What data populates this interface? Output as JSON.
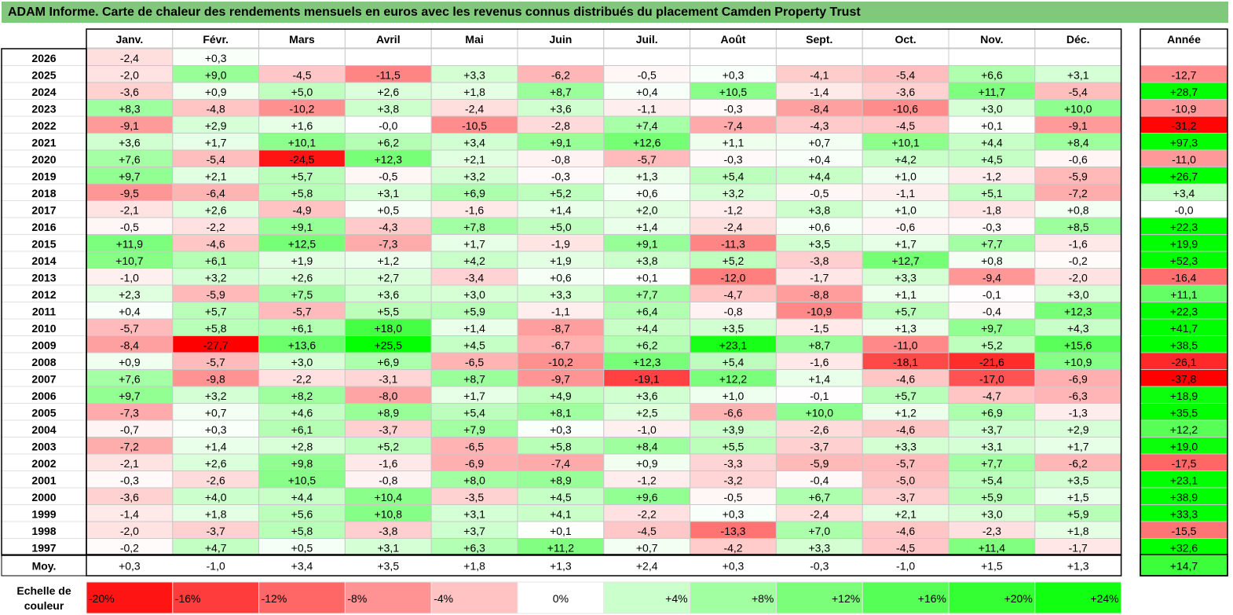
{
  "title": "ADAM Informe. Carte de chaleur des rendements mensuels en euros avec les revenus connus distribués du placement Camden Property Trust",
  "chart_data": {
    "type": "heatmap",
    "columns": [
      "Janv.",
      "Févr.",
      "Mars",
      "Avril",
      "Mai",
      "Juin",
      "Juil.",
      "Août",
      "Sept.",
      "Oct.",
      "Nov.",
      "Déc."
    ],
    "year_header": "Année",
    "rows": [
      {
        "label": "2026",
        "values": [
          "-2,4",
          "+0,3",
          "",
          "",
          "",
          "",
          "",
          "",
          "",
          "",
          "",
          ""
        ],
        "year": ""
      },
      {
        "label": "2025",
        "values": [
          "-2,0",
          "+9,0",
          "-4,5",
          "-11,5",
          "+3,3",
          "-6,2",
          "-0,5",
          "+0,3",
          "-4,1",
          "-5,4",
          "+6,6",
          "+3,1"
        ],
        "year": "-12,7"
      },
      {
        "label": "2024",
        "values": [
          "-3,6",
          "+0,9",
          "+5,0",
          "+2,6",
          "+1,8",
          "+8,7",
          "+0,4",
          "+10,5",
          "-1,4",
          "-3,6",
          "+11,7",
          "-5,4"
        ],
        "year": "+28,7"
      },
      {
        "label": "2023",
        "values": [
          "+8,3",
          "-4,8",
          "-10,2",
          "+3,8",
          "-2,4",
          "+3,6",
          "-1,1",
          "-0,3",
          "-8,4",
          "-10,6",
          "+3,0",
          "+10,0"
        ],
        "year": "-10,9"
      },
      {
        "label": "2022",
        "values": [
          "-9,1",
          "+2,9",
          "+1,6",
          "-0,0",
          "-10,5",
          "-2,8",
          "+7,4",
          "-7,4",
          "-4,3",
          "-4,5",
          "+0,1",
          "-9,1"
        ],
        "year": "-31,2"
      },
      {
        "label": "2021",
        "values": [
          "+3,6",
          "+1,7",
          "+10,1",
          "+6,2",
          "+3,4",
          "+9,1",
          "+12,6",
          "+1,1",
          "+0,7",
          "+10,1",
          "+4,4",
          "+8,4"
        ],
        "year": "+97,3"
      },
      {
        "label": "2020",
        "values": [
          "+7,6",
          "-5,4",
          "-24,5",
          "+12,3",
          "+2,1",
          "-0,8",
          "-5,7",
          "-0,3",
          "+0,4",
          "+4,2",
          "+4,5",
          "-0,6"
        ],
        "year": "-11,0"
      },
      {
        "label": "2019",
        "values": [
          "+9,7",
          "+2,1",
          "+5,7",
          "-0,5",
          "+3,2",
          "-0,3",
          "+1,3",
          "+5,4",
          "+4,4",
          "+1,0",
          "-1,2",
          "-5,9"
        ],
        "year": "+26,7"
      },
      {
        "label": "2018",
        "values": [
          "-9,5",
          "-6,4",
          "+5,8",
          "+3,1",
          "+6,9",
          "+5,2",
          "+0,6",
          "+3,2",
          "-0,5",
          "-1,1",
          "+5,1",
          "-7,2"
        ],
        "year": "+3,4"
      },
      {
        "label": "2017",
        "values": [
          "-2,1",
          "+2,6",
          "-4,9",
          "+0,5",
          "-1,6",
          "+1,4",
          "+2,0",
          "-1,2",
          "+3,8",
          "+1,0",
          "-1,8",
          "+0,8"
        ],
        "year": "-0,0"
      },
      {
        "label": "2016",
        "values": [
          "-0,5",
          "-2,2",
          "+9,1",
          "-4,3",
          "+7,8",
          "+5,0",
          "+1,4",
          "-2,4",
          "+0,6",
          "-0,6",
          "-0,3",
          "+8,5"
        ],
        "year": "+22,3"
      },
      {
        "label": "2015",
        "values": [
          "+11,9",
          "-4,6",
          "+12,5",
          "-7,3",
          "+1,7",
          "-1,9",
          "+9,1",
          "-11,3",
          "+3,5",
          "+1,7",
          "+7,7",
          "-1,6"
        ],
        "year": "+19,9"
      },
      {
        "label": "2014",
        "values": [
          "+10,7",
          "+6,1",
          "+1,9",
          "+1,2",
          "+4,2",
          "+1,9",
          "+3,8",
          "+5,2",
          "-3,8",
          "+12,7",
          "+0,8",
          "-0,2"
        ],
        "year": "+52,3"
      },
      {
        "label": "2013",
        "values": [
          "-1,0",
          "+3,2",
          "+2,6",
          "+2,7",
          "-3,4",
          "+0,6",
          "+0,1",
          "-12,0",
          "-1,7",
          "+3,3",
          "-9,4",
          "-2,0"
        ],
        "year": "-16,4"
      },
      {
        "label": "2012",
        "values": [
          "+2,3",
          "-5,9",
          "+7,5",
          "+3,6",
          "+3,0",
          "+3,3",
          "+7,7",
          "-4,7",
          "-8,8",
          "+1,1",
          "-0,1",
          "+3,0"
        ],
        "year": "+11,1"
      },
      {
        "label": "2011",
        "values": [
          "+0,4",
          "+5,7",
          "-5,7",
          "+5,5",
          "+5,9",
          "-1,1",
          "+6,4",
          "-0,8",
          "-10,9",
          "+5,7",
          "-0,4",
          "+12,3"
        ],
        "year": "+22,3"
      },
      {
        "label": "2010",
        "values": [
          "-5,7",
          "+5,8",
          "+6,1",
          "+18,0",
          "+1,4",
          "-8,7",
          "+4,4",
          "+3,5",
          "-1,5",
          "+1,3",
          "+9,7",
          "+4,3"
        ],
        "year": "+41,7"
      },
      {
        "label": "2009",
        "values": [
          "-8,4",
          "-27,7",
          "+13,6",
          "+25,5",
          "+4,5",
          "-6,7",
          "+6,2",
          "+23,1",
          "+8,7",
          "-11,0",
          "+5,2",
          "+15,6"
        ],
        "year": "+38,5"
      },
      {
        "label": "2008",
        "values": [
          "+0,9",
          "-5,7",
          "+3,0",
          "+6,9",
          "-6,5",
          "-10,2",
          "+12,3",
          "+5,4",
          "-1,6",
          "-18,1",
          "-21,6",
          "+10,9"
        ],
        "year": "-26,1"
      },
      {
        "label": "2007",
        "values": [
          "+7,6",
          "-9,8",
          "-2,2",
          "-3,1",
          "+8,7",
          "-9,7",
          "-19,1",
          "+12,2",
          "+1,4",
          "-4,6",
          "-17,0",
          "-6,9"
        ],
        "year": "-37,8"
      },
      {
        "label": "2006",
        "values": [
          "+9,7",
          "+3,2",
          "+8,2",
          "-8,0",
          "+1,7",
          "+4,9",
          "+3,6",
          "+1,0",
          "-0,1",
          "+5,7",
          "-4,7",
          "-6,3"
        ],
        "year": "+18,9"
      },
      {
        "label": "2005",
        "values": [
          "-7,3",
          "+0,7",
          "+4,6",
          "+8,9",
          "+5,4",
          "+8,1",
          "+2,5",
          "-6,6",
          "+10,0",
          "+1,2",
          "+6,9",
          "-1,3"
        ],
        "year": "+35,5"
      },
      {
        "label": "2004",
        "values": [
          "-0,7",
          "+0,3",
          "+6,1",
          "-3,7",
          "+7,9",
          "+0,3",
          "-1,0",
          "+3,9",
          "-2,6",
          "-4,6",
          "+3,7",
          "+2,9"
        ],
        "year": "+12,2"
      },
      {
        "label": "2003",
        "values": [
          "-7,2",
          "+1,4",
          "+2,8",
          "+5,2",
          "-6,5",
          "+5,8",
          "+8,4",
          "+5,5",
          "-3,7",
          "+3,3",
          "+3,1",
          "+1,7"
        ],
        "year": "+19,0"
      },
      {
        "label": "2002",
        "values": [
          "-2,1",
          "+2,6",
          "+9,8",
          "-1,6",
          "-6,9",
          "-7,4",
          "+0,9",
          "-3,3",
          "-5,9",
          "-5,7",
          "+7,7",
          "-6,2"
        ],
        "year": "-17,5"
      },
      {
        "label": "2001",
        "values": [
          "-0,3",
          "-2,6",
          "+10,5",
          "-0,8",
          "+8,0",
          "+8,9",
          "-1,2",
          "-3,2",
          "-0,4",
          "-5,0",
          "+5,4",
          "+3,5"
        ],
        "year": "+23,1"
      },
      {
        "label": "2000",
        "values": [
          "-3,6",
          "+4,0",
          "+4,4",
          "+10,4",
          "-3,5",
          "+4,5",
          "+9,6",
          "-0,5",
          "+6,7",
          "-3,7",
          "+5,9",
          "+1,5"
        ],
        "year": "+38,9"
      },
      {
        "label": "1999",
        "values": [
          "-1,4",
          "+1,8",
          "+5,6",
          "+10,8",
          "+3,1",
          "+4,1",
          "-2,2",
          "+0,3",
          "-2,4",
          "+2,1",
          "+3,0",
          "+5,9"
        ],
        "year": "+33,3"
      },
      {
        "label": "1998",
        "values": [
          "-2,0",
          "-3,7",
          "+5,8",
          "-3,8",
          "+3,7",
          "+0,1",
          "-4,5",
          "-13,3",
          "+7,0",
          "-4,6",
          "-2,3",
          "+1,8"
        ],
        "year": "-15,5"
      },
      {
        "label": "1997",
        "values": [
          "-0,2",
          "+4,7",
          "+0,5",
          "+3,1",
          "+6,3",
          "+11,2",
          "+0,7",
          "-4,2",
          "+3,3",
          "-4,5",
          "+11,4",
          "-1,7"
        ],
        "year": "+32,6"
      }
    ],
    "average": {
      "label": "Moy.",
      "values": [
        "+0,3",
        "-1,0",
        "+3,4",
        "+3,5",
        "+1,8",
        "+1,3",
        "+2,4",
        "+0,3",
        "-0,3",
        "-1,0",
        "+1,5",
        "+1,3"
      ],
      "year": "+14,7"
    },
    "scale": {
      "label_line1": "Echelle de",
      "label_line2": "couleur",
      "steps": [
        "-20%",
        "-16%",
        "-12%",
        "-8%",
        "-4%",
        "0%",
        "+4%",
        "+8%",
        "+12%",
        "+16%",
        "+20%",
        "+24%"
      ],
      "step_values": [
        -20,
        -16,
        -12,
        -8,
        -4,
        0,
        4,
        8,
        12,
        16,
        20,
        24
      ]
    },
    "colors": {
      "negative": "#ff0000",
      "positive": "#00ff00",
      "neutral": "#ffffff",
      "title_bg": "#80c97a"
    }
  }
}
